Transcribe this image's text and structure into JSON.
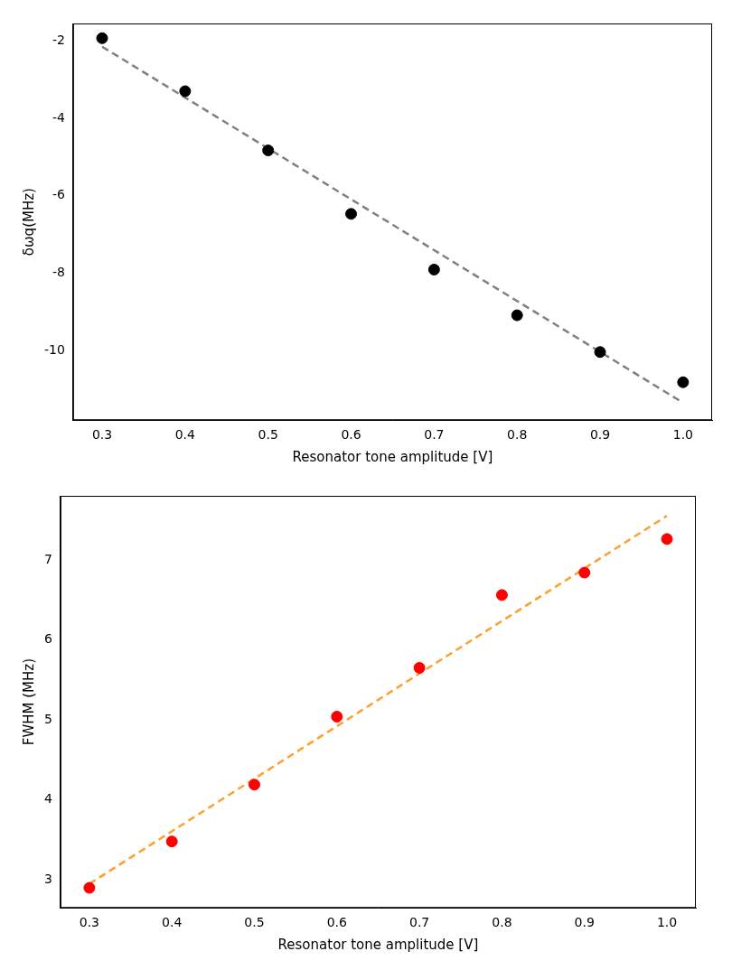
{
  "chart_data": [
    {
      "type": "scatter",
      "x_label": "Resonator tone amplitude [V]",
      "y_label": "δωq(MHz)",
      "xlim": [
        0.265,
        1.035
      ],
      "xticks": [
        0.3,
        0.4,
        0.5,
        0.6,
        0.7,
        0.8,
        0.9,
        {
          "value": 1,
          "label": "1.0"
        }
      ],
      "ylim": [
        -11.8,
        -1.55
      ],
      "yticks": [
        -10,
        -8,
        -6,
        -4,
        -2
      ],
      "grid": false,
      "series": [
        {
          "type": "scatter",
          "color": "#000000",
          "marker": "circle",
          "x": [
            0.3,
            0.4,
            0.5,
            0.6,
            0.7,
            0.8,
            0.9,
            1.0
          ],
          "values": [
            -1.93,
            -3.3,
            -4.83,
            -6.47,
            -7.91,
            -9.09,
            -10.04,
            -10.82
          ]
        },
        {
          "type": "line",
          "color": "#808080",
          "line_style": "dashed",
          "x": [
            0.3,
            1.0
          ],
          "values": [
            -2.15,
            -11.35
          ]
        }
      ]
    },
    {
      "type": "scatter",
      "x_label": "Resonator tone amplitude [V]",
      "y_label": "FWHM (MHz)",
      "xlim": [
        0.265,
        1.035
      ],
      "xticks": [
        0.3,
        0.4,
        0.5,
        0.6,
        0.7,
        0.8,
        0.9,
        {
          "value": 1,
          "label": "1.0"
        }
      ],
      "ylim": [
        2.65,
        7.8
      ],
      "yticks": [
        3,
        4,
        5,
        6,
        7
      ],
      "grid": false,
      "series": [
        {
          "type": "scatter",
          "color": "#ff0000",
          "marker": "circle",
          "x": [
            0.3,
            0.4,
            0.5,
            0.6,
            0.7,
            0.8,
            0.9,
            1.0
          ],
          "values": [
            2.9,
            3.48,
            4.19,
            5.04,
            5.65,
            6.56,
            6.84,
            7.26
          ]
        },
        {
          "type": "line",
          "color": "#ff9f2e",
          "line_style": "dashed",
          "x": [
            0.3,
            1.0
          ],
          "values": [
            2.95,
            7.55
          ]
        }
      ]
    }
  ]
}
